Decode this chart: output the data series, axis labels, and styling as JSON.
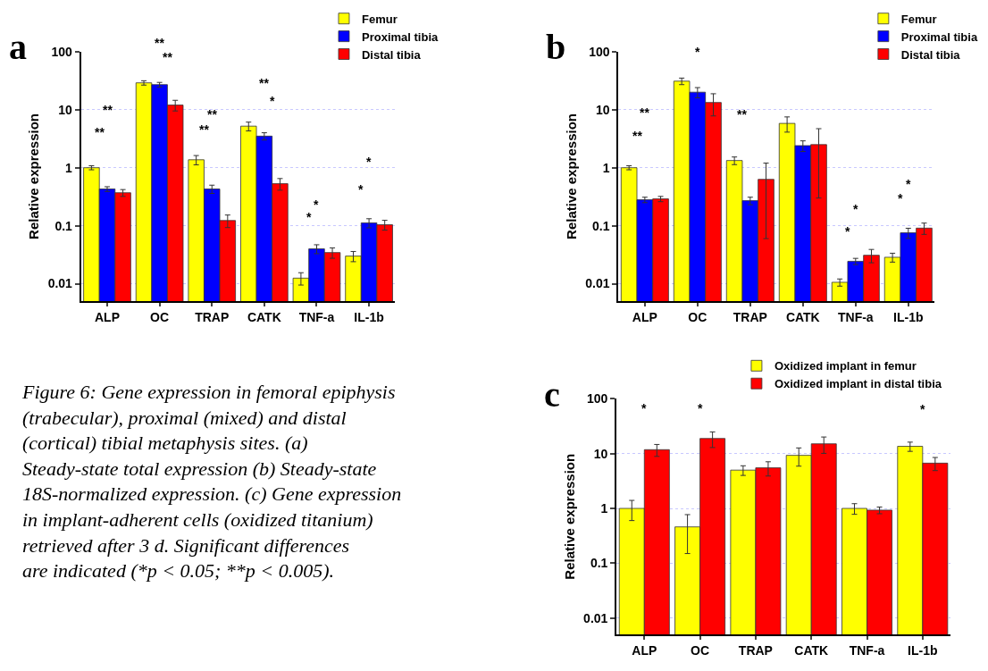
{
  "chart_data": [
    {
      "type": "bar",
      "title": "a",
      "ylabel": "Relative expression",
      "log": "y",
      "grid": "y",
      "legend": "top right",
      "ylim": [
        0.005,
        100
      ],
      "yticks": [
        0.01,
        0.1,
        1,
        10,
        100
      ],
      "categories": [
        "ALP",
        "OC",
        "TRAP",
        "CATK",
        "TNF-a",
        "IL-1b"
      ],
      "series": [
        {
          "name": "Femur",
          "color": "#ffff00",
          "values": [
            1.0,
            29,
            1.37,
            5.2,
            0.0125,
            0.03
          ],
          "errors": [
            0.08,
            2.5,
            0.25,
            0.9,
            0.003,
            0.006
          ]
        },
        {
          "name": "Proximal tibia",
          "color": "#0000ff",
          "values": [
            0.43,
            27,
            0.43,
            3.5,
            0.04,
            0.112
          ],
          "errors": [
            0.04,
            2.5,
            0.07,
            0.5,
            0.007,
            0.02
          ]
        },
        {
          "name": "Distal tibia",
          "color": "#ff0000",
          "values": [
            0.37,
            12,
            0.123,
            0.53,
            0.0345,
            0.104
          ],
          "errors": [
            0.05,
            2.5,
            0.03,
            0.12,
            0.007,
            0.02
          ]
        }
      ],
      "annotations": [
        "**",
        "**",
        "**",
        "**",
        "**",
        "**",
        "*",
        "**",
        "*",
        "*",
        "*",
        "*"
      ]
    },
    {
      "type": "bar",
      "title": "b",
      "ylabel": "Relative expression",
      "log": "y",
      "grid": "y",
      "legend": "top right",
      "ylim": [
        0.005,
        100
      ],
      "yticks": [
        0.01,
        0.1,
        1,
        10,
        100
      ],
      "categories": [
        "ALP",
        "OC",
        "TRAP",
        "CATK",
        "TNF-a",
        "IL-1b"
      ],
      "series": [
        {
          "name": "Femur",
          "color": "#ffff00",
          "values": [
            1.0,
            31,
            1.33,
            5.8,
            0.0106,
            0.0286
          ],
          "errors": [
            0.08,
            4,
            0.2,
            1.7,
            0.0015,
            0.005
          ]
        },
        {
          "name": "Proximal tibia",
          "color": "#0000ff",
          "values": [
            0.28,
            20,
            0.27,
            2.4,
            0.0244,
            0.0755
          ],
          "errors": [
            0.03,
            4,
            0.04,
            0.5,
            0.003,
            0.015
          ]
        },
        {
          "name": "Distal tibia",
          "color": "#ff0000",
          "values": [
            0.29,
            13.3,
            0.63,
            2.5,
            0.031,
            0.091
          ],
          "errors": [
            0.03,
            5.5,
            0.57,
            2.2,
            0.008,
            0.02
          ]
        }
      ],
      "annotations": [
        "**",
        "**",
        "*",
        "**",
        "*",
        "*",
        "*",
        "*"
      ]
    },
    {
      "type": "bar",
      "title": "c",
      "ylabel": "Relative expression",
      "log": "y",
      "grid": "y",
      "legend": "top",
      "ylim": [
        0.005,
        100
      ],
      "yticks": [
        0.01,
        0.1,
        1,
        10,
        100
      ],
      "categories": [
        "ALP",
        "OC",
        "TRAP",
        "CATK",
        "TNF-a",
        "IL-1b"
      ],
      "series": [
        {
          "name": "Oxidized implant in femur",
          "color": "#ffff00",
          "values": [
            1.0,
            0.46,
            5.0,
            9.3,
            1.0,
            13.6
          ],
          "errors": [
            0.4,
            0.31,
            1.0,
            3.4,
            0.22,
            2.6
          ]
        },
        {
          "name": "Oxidized implant in distal tibia",
          "color": "#ff0000",
          "values": [
            11.8,
            18.9,
            5.5,
            15.1,
            0.93,
            6.7
          ],
          "errors": [
            2.9,
            6,
            1.6,
            5,
            0.13,
            1.8
          ]
        }
      ],
      "annotations": [
        "*",
        "*",
        "*"
      ]
    },
    {
      "type": "other",
      "annotations": [
        "Figure 6: Gene expression in femoral epiphysis (trabecular), proximal (mixed) and distal (cortical) tibial metaphysis sites. (a) Steady-state total expression (b) Steady-state 18S-normalized expression. (c) Gene expression in implant-adherent cells (oxidized titanium) retrieved after 3 d. Significant differences are indicated (*p < 0.05; **p < 0.005)."
      ]
    }
  ]
}
